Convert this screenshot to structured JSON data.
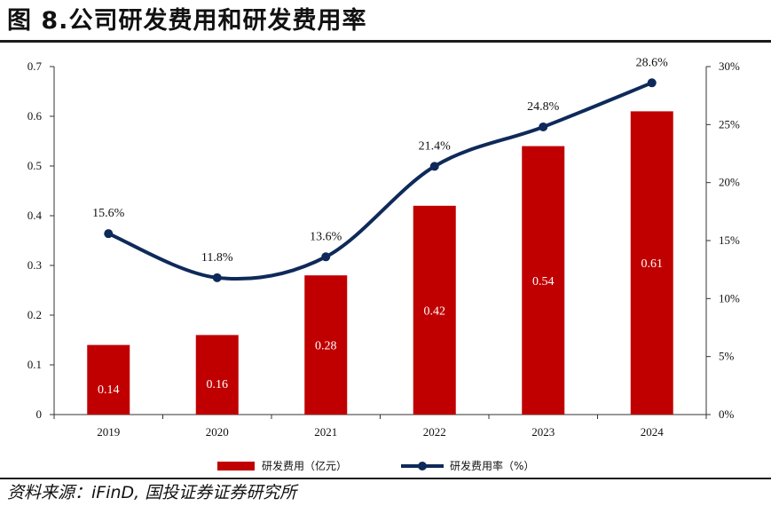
{
  "header": {
    "title": "图 8.公司研发费用和研发费用率"
  },
  "footer": {
    "source": "资料来源：iFinD, 国投证券证券研究所"
  },
  "chart_data": {
    "type": "bar",
    "categories": [
      "2019",
      "2020",
      "2021",
      "2022",
      "2023",
      "2024"
    ],
    "series": [
      {
        "name": "研发费用（亿元）",
        "type": "bar",
        "axis": "left",
        "values": [
          0.14,
          0.16,
          0.28,
          0.42,
          0.54,
          0.61
        ],
        "labels": [
          "0.14",
          "0.16",
          "0.28",
          "0.42",
          "0.54",
          "0.61"
        ],
        "color": "#c00000"
      },
      {
        "name": "研发费用率（%）",
        "type": "line",
        "axis": "right",
        "values": [
          15.6,
          11.8,
          13.6,
          21.4,
          24.8,
          28.6
        ],
        "labels": [
          "15.6%",
          "11.8%",
          "13.6%",
          "21.4%",
          "24.8%",
          "28.6%"
        ],
        "color": "#0e2a5a"
      }
    ],
    "y_left": {
      "min": 0,
      "max": 0.7,
      "ticks": [
        "0",
        "0.1",
        "0.2",
        "0.3",
        "0.4",
        "0.5",
        "0.6",
        "0.7"
      ]
    },
    "y_right": {
      "min": 0,
      "max": 30,
      "ticks": [
        "0%",
        "5%",
        "10%",
        "15%",
        "20%",
        "25%",
        "30%"
      ]
    },
    "legend_position": "bottom",
    "grid": false
  }
}
